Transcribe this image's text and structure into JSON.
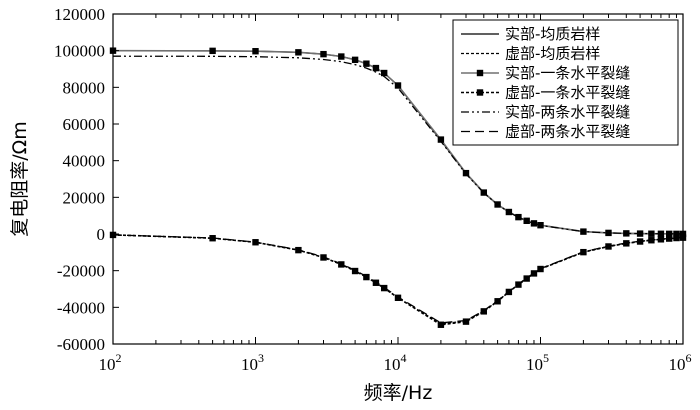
{
  "chart_data": {
    "type": "line",
    "xlabel": "频率/Hz",
    "ylabel": "复电阻率/Ωm",
    "xscale": "log",
    "xlim": [
      100,
      1000000
    ],
    "ylim": [
      -60000,
      120000
    ],
    "x_ticks": [
      {
        "value": 100,
        "base": "10",
        "exp": "2"
      },
      {
        "value": 1000,
        "base": "10",
        "exp": "3"
      },
      {
        "value": 10000,
        "base": "10",
        "exp": "4"
      },
      {
        "value": 100000,
        "base": "10",
        "exp": "5"
      },
      {
        "value": 1000000,
        "base": "10",
        "exp": "6"
      }
    ],
    "y_ticks": [
      {
        "value": 120000,
        "label": "120000"
      },
      {
        "value": 100000,
        "label": "100000"
      },
      {
        "value": 80000,
        "label": "80000"
      },
      {
        "value": 60000,
        "label": "60000"
      },
      {
        "value": 40000,
        "label": "40000"
      },
      {
        "value": 20000,
        "label": "20000"
      },
      {
        "value": 0,
        "label": "0"
      },
      {
        "value": -20000,
        "label": "-20000"
      },
      {
        "value": -40000,
        "label": "-40000"
      },
      {
        "value": -60000,
        "label": "-60000"
      }
    ],
    "grid": false,
    "legend_position": "top-right",
    "x": [
      100,
      500,
      1000,
      2000,
      3000,
      4000,
      5000,
      6000,
      7000,
      8000,
      10000,
      20000,
      30000,
      40000,
      50000,
      60000,
      70000,
      80000,
      90000,
      100000,
      200000,
      300000,
      400000,
      500000,
      600000,
      700000,
      800000,
      900000,
      1000000
    ],
    "series": [
      {
        "name": "实部-均质岩样",
        "style": "solid",
        "color": "#000000",
        "marker": "none",
        "values": [
          100000,
          99900,
          99700,
          99100,
          98100,
          96800,
          95000,
          92900,
          90500,
          87800,
          81000,
          51000,
          33000,
          22500,
          16000,
          12000,
          9200,
          7200,
          5800,
          4800,
          1300,
          600,
          340,
          220,
          150,
          110,
          85,
          68,
          55
        ]
      },
      {
        "name": "虚部-均质岩样",
        "style": "dotted",
        "color": "#000000",
        "marker": "none",
        "values": [
          -500,
          -2300,
          -4500,
          -8800,
          -12800,
          -16600,
          -20200,
          -23500,
          -26600,
          -29500,
          -34800,
          -49000,
          -47500,
          -42000,
          -36500,
          -31500,
          -27500,
          -24200,
          -21400,
          -19000,
          -9800,
          -6700,
          -5000,
          -4000,
          -3300,
          -2900,
          -2500,
          -2200,
          -2000
        ]
      },
      {
        "name": "实部-一条水平裂缝",
        "style": "solid",
        "color": "#707070",
        "marker": "square",
        "values": [
          100000,
          99900,
          99700,
          99100,
          98100,
          96800,
          95000,
          92900,
          90500,
          87800,
          81000,
          51500,
          33200,
          22600,
          16100,
          12000,
          9200,
          7200,
          5800,
          4800,
          1300,
          600,
          340,
          220,
          150,
          110,
          85,
          68,
          55
        ]
      },
      {
        "name": "虚部-一条水平裂缝",
        "style": "dotted",
        "color": "#000000",
        "marker": "square",
        "values": [
          -500,
          -2300,
          -4500,
          -8800,
          -12800,
          -16600,
          -20200,
          -23500,
          -26600,
          -29500,
          -34800,
          -49500,
          -47800,
          -42200,
          -36700,
          -31600,
          -27600,
          -24300,
          -21500,
          -19100,
          -9900,
          -6800,
          -5100,
          -4100,
          -3400,
          -2900,
          -2500,
          -2200,
          -2000
        ]
      },
      {
        "name": "实部-两条水平裂缝",
        "style": "dashdotdot",
        "color": "#000000",
        "marker": "none",
        "values": [
          97000,
          96900,
          96700,
          96100,
          95200,
          94000,
          92400,
          90500,
          88300,
          85900,
          79600,
          50500,
          32700,
          22400,
          16000,
          11900,
          9100,
          7100,
          5700,
          4700,
          1300,
          600,
          340,
          220,
          150,
          110,
          85,
          68,
          55
        ]
      },
      {
        "name": "虚部-两条水平裂缝",
        "style": "dashed",
        "color": "#000000",
        "marker": "none",
        "values": [
          -500,
          -2200,
          -4400,
          -8600,
          -12500,
          -16300,
          -19800,
          -23100,
          -26200,
          -29100,
          -34400,
          -48500,
          -47200,
          -41800,
          -36300,
          -31300,
          -27300,
          -24000,
          -21200,
          -18900,
          -9700,
          -6600,
          -4900,
          -3950,
          -3250,
          -2850,
          -2450,
          -2150,
          -1950
        ]
      }
    ]
  }
}
